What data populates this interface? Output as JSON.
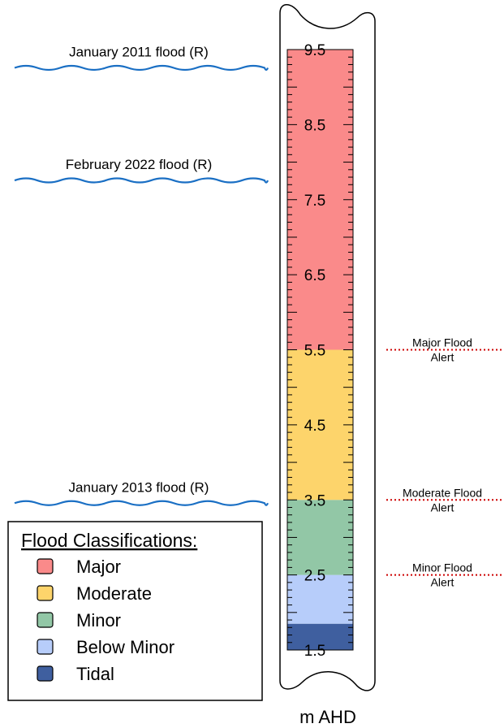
{
  "unit_label": "m AHD",
  "gauge": {
    "ticks": [
      "9.5",
      "8.5",
      "7.5",
      "6.5",
      "5.5",
      "4.5",
      "3.5",
      "2.5",
      "1.5"
    ],
    "range": [
      1.5,
      9.5
    ],
    "bands": [
      {
        "name": "Tidal",
        "from": 1.5,
        "to": 1.85,
        "color": "#3f5f9f"
      },
      {
        "name": "Below Minor",
        "from": 1.85,
        "to": 2.5,
        "color": "#b7cdfa"
      },
      {
        "name": "Minor",
        "from": 2.5,
        "to": 3.5,
        "color": "#92c7a6"
      },
      {
        "name": "Moderate",
        "from": 3.5,
        "to": 5.5,
        "color": "#fdd46b"
      },
      {
        "name": "Major",
        "from": 5.5,
        "to": 9.5,
        "color": "#fa8a8a"
      }
    ]
  },
  "historic_floods": [
    {
      "label": "January 2011 flood (R)",
      "level": 9.3
    },
    {
      "label": "February 2022 flood (R)",
      "level": 7.8
    },
    {
      "label": "January 2013 flood (R)",
      "level": 3.5
    }
  ],
  "alerts": [
    {
      "line1": "Major Flood",
      "line2": "Alert",
      "level": 5.5,
      "color": "#cc0000"
    },
    {
      "line1": "Moderate Flood",
      "line2": "Alert",
      "level": 3.5,
      "color": "#cc0000"
    },
    {
      "line1": "Minor Flood",
      "line2": "Alert",
      "level": 2.5,
      "color": "#cc0000"
    }
  ],
  "legend": {
    "title": "Flood Classifications:",
    "items": [
      {
        "label": "Major",
        "color": "#fa8a8a"
      },
      {
        "label": "Moderate",
        "color": "#fdd46b"
      },
      {
        "label": "Minor",
        "color": "#92c7a6"
      },
      {
        "label": "Below Minor",
        "color": "#b7cdfa"
      },
      {
        "label": "Tidal",
        "color": "#3f5f9f"
      }
    ]
  },
  "colors": {
    "wave": "#1a6fc4",
    "outline": "#000000"
  }
}
